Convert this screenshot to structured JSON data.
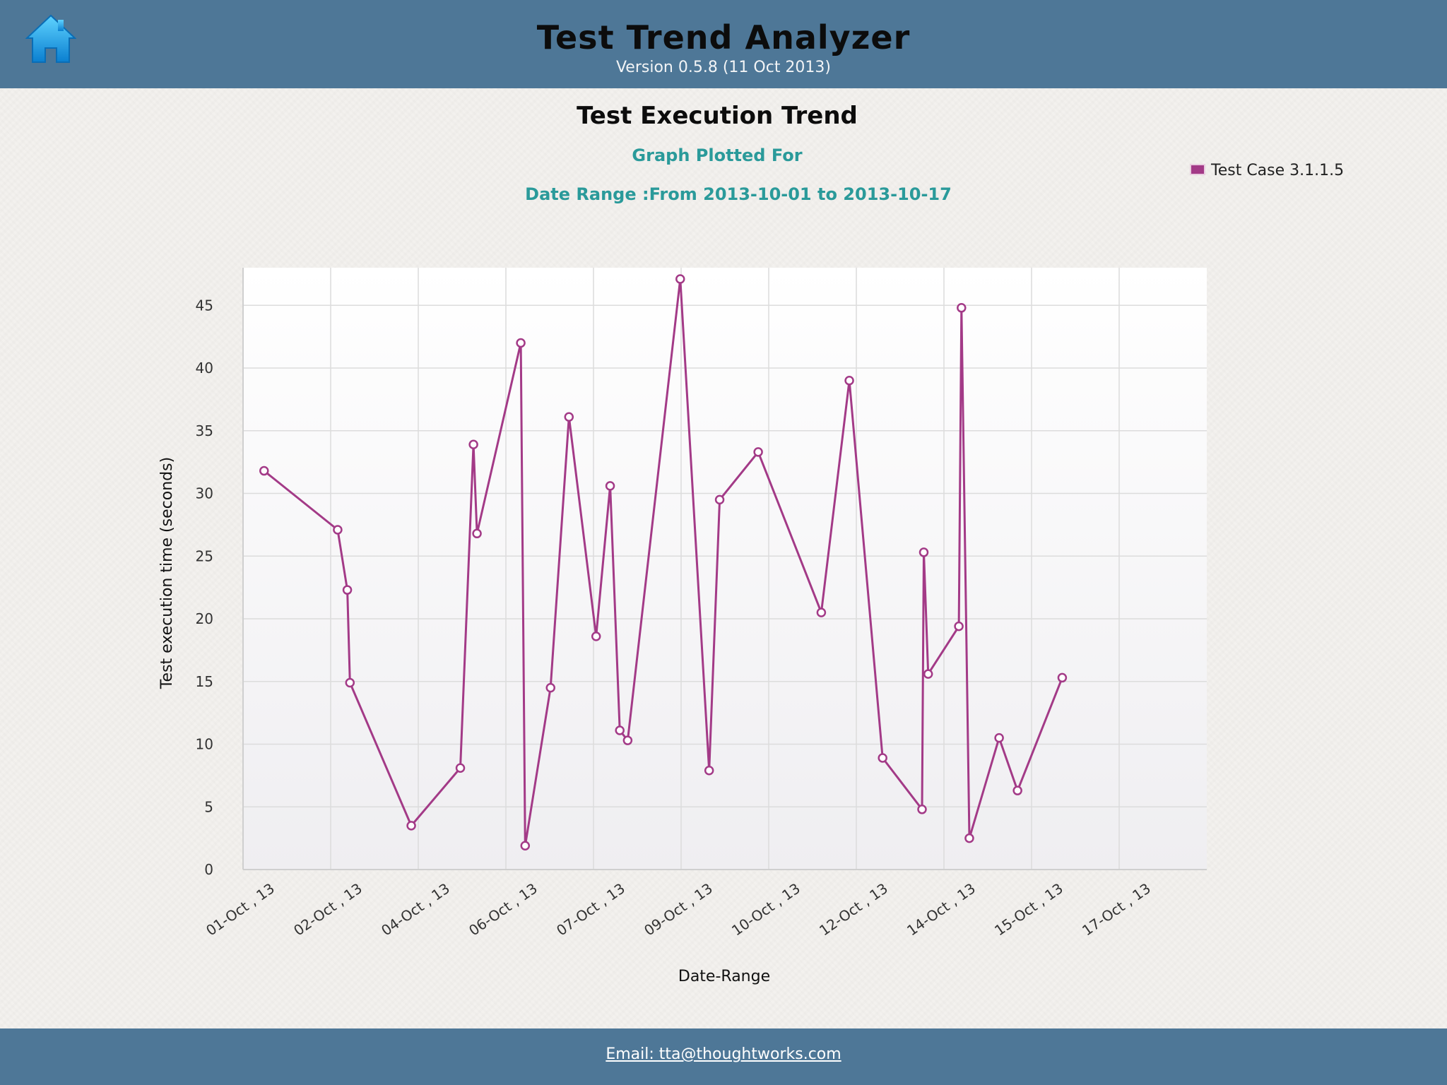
{
  "header": {
    "title": "Test Trend Analyzer",
    "version": "Version 0.5.8 (11 Oct 2013)",
    "home_icon": "home-icon"
  },
  "chart_header": {
    "title": "Test Execution Trend",
    "subtitle": "Graph Plotted For",
    "date_range": "Date Range :From 2013-10-01 to 2013-10-17"
  },
  "footer": {
    "email": "Email:  tta@thoughtworks.com"
  },
  "chart_data": {
    "type": "line",
    "title": "Test Execution Trend",
    "xlabel": "Date-Range",
    "ylabel": "Test execution time (seconds)",
    "ylim": [
      0,
      48
    ],
    "yticks": [
      0,
      5,
      10,
      15,
      20,
      25,
      30,
      35,
      40,
      45
    ],
    "xlim": [
      0,
      11
    ],
    "xtick_labels": [
      "01-Oct , 13",
      "02-Oct , 13",
      "04-Oct , 13",
      "06-Oct , 13",
      "07-Oct , 13",
      "09-Oct , 13",
      "10-Oct , 13",
      "12-Oct , 13",
      "14-Oct , 13",
      "15-Oct , 13",
      "17-Oct , 13"
    ],
    "grid": true,
    "legend_position": "top-right",
    "series": [
      {
        "name": "Test Case 3.1.1.5",
        "color": "#a33a87",
        "x": [
          0.24,
          1.08,
          1.19,
          1.22,
          1.92,
          2.48,
          2.63,
          2.67,
          3.17,
          3.22,
          3.51,
          3.72,
          4.03,
          4.19,
          4.3,
          4.39,
          4.99,
          5.32,
          5.44,
          5.88,
          6.6,
          6.92,
          7.3,
          7.75,
          7.77,
          7.82,
          8.17,
          8.2,
          8.29,
          8.63,
          8.84,
          9.35
        ],
        "y": [
          31.8,
          27.1,
          22.3,
          14.9,
          3.5,
          8.1,
          33.9,
          26.8,
          42.0,
          1.9,
          14.5,
          36.1,
          18.6,
          30.6,
          11.1,
          10.3,
          47.1,
          7.9,
          29.5,
          33.3,
          20.5,
          39.0,
          8.9,
          4.8,
          25.3,
          15.6,
          19.4,
          44.8,
          2.5,
          10.5,
          6.3,
          15.3
        ]
      }
    ]
  }
}
